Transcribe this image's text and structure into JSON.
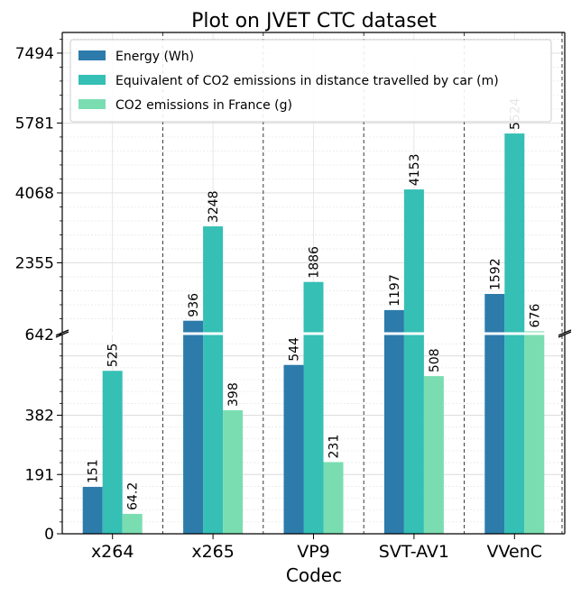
{
  "chart_data": {
    "type": "bar",
    "title": "Plot on JVET CTC dataset",
    "xlabel": "Codec",
    "ylabel": "",
    "categories": [
      "x264",
      "x265",
      "VP9",
      "SVT-AV1",
      "VVenC"
    ],
    "series": [
      {
        "name": "Energy (Wh)",
        "color": "#2c7bab",
        "values": [
          151,
          936,
          544,
          1197,
          1592
        ],
        "labels": [
          "151",
          "936",
          "544",
          "1197",
          "1592"
        ]
      },
      {
        "name": "Equivalent of CO2 emissions in distance travelled by car (m)",
        "color": "#35bfb5",
        "values": [
          525,
          3248,
          1886,
          4153,
          5524
        ],
        "labels": [
          "525",
          "3248",
          "1886",
          "4153",
          "5524"
        ]
      },
      {
        "name": "CO2 emissions in France (g)",
        "color": "#7addb1",
        "values": [
          64.2,
          398,
          231,
          508,
          676
        ],
        "labels": [
          "64.2",
          "398",
          "231",
          "508",
          "676"
        ]
      }
    ],
    "axis_break": {
      "lower": {
        "ylim": [
          0,
          642
        ],
        "ticks": [
          0,
          191,
          382,
          642
        ],
        "tick_labels": [
          "0",
          "191",
          "382",
          "642"
        ]
      },
      "upper": {
        "ylim": [
          642,
          8000
        ],
        "ticks": [
          2355,
          4068,
          5781,
          7494
        ],
        "tick_labels": [
          "2355",
          "4068",
          "5781",
          "7494"
        ]
      }
    },
    "grid": true,
    "legend": "top-left"
  }
}
